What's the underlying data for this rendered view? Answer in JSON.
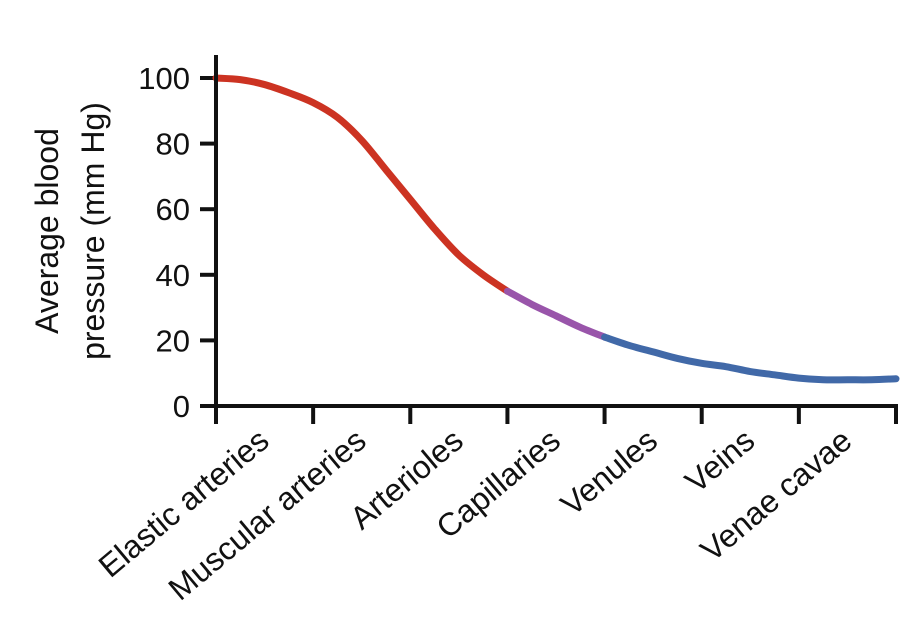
{
  "chart_data": {
    "type": "line",
    "title": "",
    "ylabel": "Average blood pressure (mm Hg)",
    "ylabel_lines": [
      "Average blood",
      "pressure (mm Hg)"
    ],
    "xlabel": "",
    "ylim": [
      0,
      100
    ],
    "yticks": [
      0,
      20,
      40,
      60,
      80,
      100
    ],
    "categories": [
      "Elastic arteries",
      "Muscular arteries",
      "Arterioles",
      "Capillaries",
      "Venules",
      "Veins",
      "Venae cavae"
    ],
    "grid": false,
    "legend": "none",
    "series": [
      {
        "color": "#cc3322",
        "x": [
          0,
          0.25,
          0.5,
          0.75,
          1.0,
          1.25,
          1.5,
          1.75,
          2.0,
          2.25,
          2.5,
          2.75,
          3.0
        ],
        "y": [
          100,
          99.5,
          98,
          95.5,
          92.5,
          88,
          81,
          72,
          63,
          54,
          46,
          40,
          35
        ]
      },
      {
        "color": "#9955aa",
        "x": [
          3.0,
          3.25,
          3.5,
          3.75,
          4.0
        ],
        "y": [
          35,
          31,
          27.5,
          24,
          21
        ]
      },
      {
        "color": "#4169a8",
        "x": [
          4.0,
          4.25,
          4.5,
          4.75,
          5.0,
          5.25,
          5.5,
          5.75,
          6.0,
          6.25,
          6.5,
          6.75,
          7.0
        ],
        "y": [
          21,
          18.5,
          16.5,
          14.5,
          13,
          12,
          10.5,
          9.5,
          8.5,
          8,
          8,
          8,
          8.3
        ]
      }
    ]
  }
}
